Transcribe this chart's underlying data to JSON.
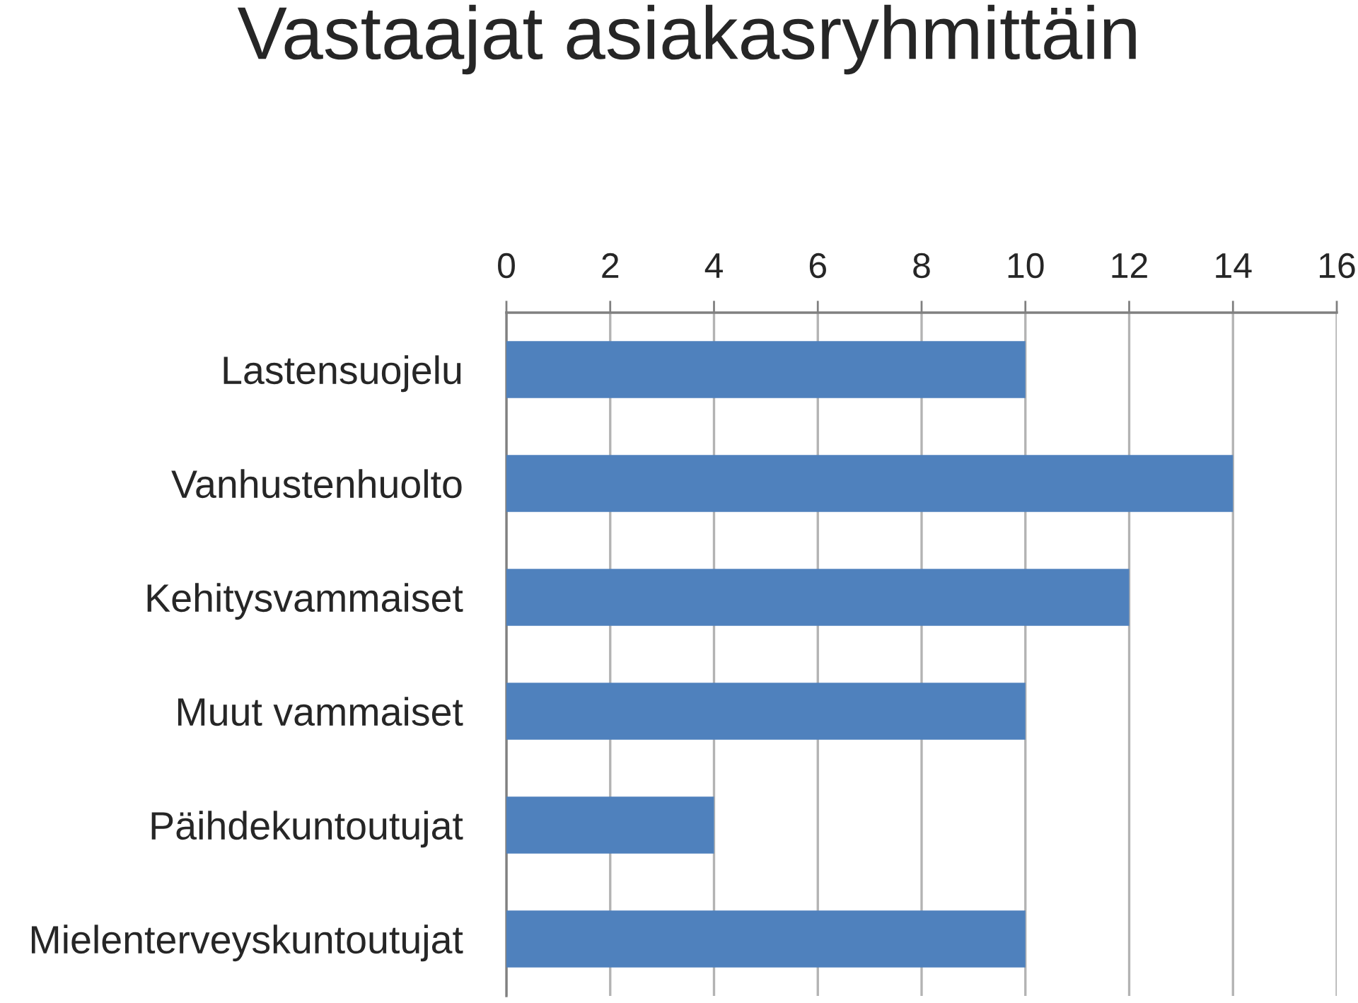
{
  "chart_data": {
    "type": "bar",
    "orientation": "horizontal",
    "title": "Vastaajat asiakasryhmittäin",
    "categories": [
      "Lastensuojelu",
      "Vanhustenhuolto",
      "Kehitysvammaiset",
      "Muut vammaiset",
      "Päihdekuntoutujat",
      "Mielenterveyskuntoutujat"
    ],
    "values": [
      10,
      14,
      12,
      10,
      4,
      10
    ],
    "color": "#4f81bd",
    "xlim": [
      0,
      16
    ],
    "xticks": [
      0,
      2,
      4,
      6,
      8,
      10,
      12,
      14,
      16
    ],
    "grid": "x"
  }
}
